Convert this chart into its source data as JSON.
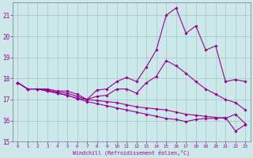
{
  "xlabel": "Windchill (Refroidissement éolien,°C)",
  "bg_color": "#cce8e8",
  "line_color": "#990099",
  "grid_color": "#aacccc",
  "xlim": [
    -0.5,
    23.5
  ],
  "ylim": [
    15,
    21.6
  ],
  "yticks": [
    15,
    16,
    17,
    18,
    19,
    20,
    21
  ],
  "xticks": [
    0,
    1,
    2,
    3,
    4,
    5,
    6,
    7,
    8,
    9,
    10,
    11,
    12,
    13,
    14,
    15,
    16,
    17,
    18,
    19,
    20,
    21,
    22,
    23
  ],
  "line1": [
    17.8,
    17.5,
    17.5,
    17.5,
    17.4,
    17.4,
    17.25,
    17.0,
    17.45,
    17.5,
    17.85,
    18.05,
    17.85,
    18.55,
    19.35,
    21.0,
    21.35,
    20.15,
    20.5,
    19.35,
    19.55,
    17.85,
    17.95,
    17.85
  ],
  "line2": [
    17.8,
    17.5,
    17.5,
    17.45,
    17.35,
    17.3,
    17.15,
    17.0,
    17.15,
    17.2,
    17.5,
    17.5,
    17.3,
    17.8,
    18.1,
    18.85,
    18.6,
    18.25,
    17.85,
    17.5,
    17.25,
    17.0,
    16.85,
    16.5
  ],
  "line3": [
    17.8,
    17.5,
    17.5,
    17.4,
    17.3,
    17.2,
    17.05,
    16.9,
    16.8,
    16.7,
    16.6,
    16.5,
    16.4,
    16.3,
    16.2,
    16.1,
    16.05,
    15.95,
    16.05,
    16.1,
    16.1,
    16.15,
    15.5,
    15.8
  ],
  "line4": [
    17.8,
    17.5,
    17.5,
    17.4,
    17.3,
    17.2,
    17.05,
    17.0,
    16.95,
    16.9,
    16.85,
    16.75,
    16.65,
    16.6,
    16.55,
    16.5,
    16.4,
    16.3,
    16.25,
    16.2,
    16.15,
    16.1,
    16.3,
    15.85
  ]
}
